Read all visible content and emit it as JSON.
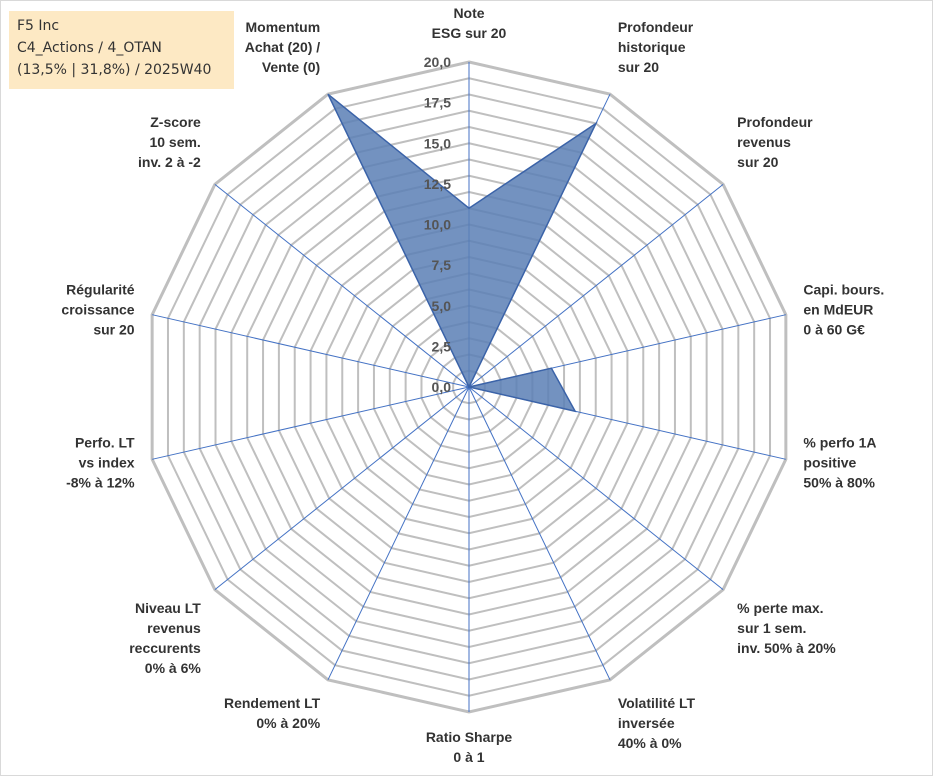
{
  "info": {
    "line1": "F5 Inc",
    "line2": "C4_Actions / 4_OTAN",
    "line3": "(13,5% | 31,8%) / 2025W40"
  },
  "colors": {
    "fill": "#5b7fb5",
    "stroke": "#3b63a8",
    "grid": "#bfbfbf",
    "spoke": "#4472c4"
  },
  "chart_data": {
    "type": "radar",
    "title": "",
    "rmin": 0,
    "rmax": 20,
    "ticks": [
      "0,0",
      "2,5",
      "5,0",
      "7,5",
      "10,0",
      "12,5",
      "15,0",
      "17,5",
      "20,0"
    ],
    "grid": true,
    "axes": [
      {
        "label": [
          "Note",
          "ESG sur 20"
        ],
        "value": 11.0
      },
      {
        "label": [
          "Profondeur",
          "historique",
          "sur 20"
        ],
        "value": 18.0
      },
      {
        "label": [
          "Profondeur",
          "revenus",
          "sur 20"
        ],
        "value": 0.0
      },
      {
        "label": [
          "Capi. bours.",
          "en MdEUR",
          "0 à 60 G€"
        ],
        "value": 5.2
      },
      {
        "label": [
          "% perfo 1A",
          "positive",
          "50% à 80%"
        ],
        "value": 6.7
      },
      {
        "label": [
          "% perte max.",
          "sur 1 sem.",
          "inv. 50% à 20%"
        ],
        "value": 0.0
      },
      {
        "label": [
          "Volatilité LT",
          "inversée",
          "40% à 0%"
        ],
        "value": 0.0
      },
      {
        "label": [
          "Ratio Sharpe",
          "0 à 1"
        ],
        "value": 0.0
      },
      {
        "label": [
          "Rendement LT",
          "0% à 20%"
        ],
        "value": 0.0
      },
      {
        "label": [
          "Niveau LT",
          "revenus",
          "reccurents",
          "0% à 6%"
        ],
        "value": 0.0
      },
      {
        "label": [
          "Perfo. LT",
          "vs index",
          "-8% à 12%"
        ],
        "value": 0.0
      },
      {
        "label": [
          "Régularité",
          "croissance",
          "sur 20"
        ],
        "value": 0.0
      },
      {
        "label": [
          "Z-score",
          "10 sem.",
          "inv. 2 à -2"
        ],
        "value": 0.0
      },
      {
        "label": [
          "Momentum",
          "Achat (20) /",
          "Vente (0)"
        ],
        "value": 20.0
      }
    ],
    "polygon": [
      11.0,
      18.0,
      0.0,
      5.2,
      6.7,
      0.0,
      0.0,
      0.0,
      0.0,
      0.0,
      0.0,
      0.0,
      0.0,
      20.0
    ]
  }
}
